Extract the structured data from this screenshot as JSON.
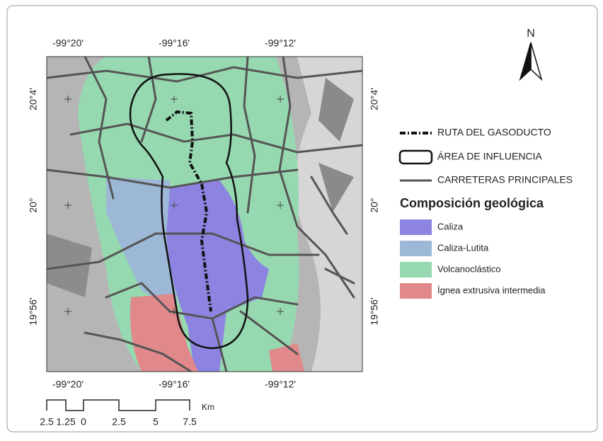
{
  "map": {
    "top_labels": [
      "-99°20'",
      "-99°16'",
      "-99°12'"
    ],
    "bottom_labels": [
      "-99°20'",
      "-99°16'",
      "-99°12'"
    ],
    "left_labels": [
      "20°4'",
      "20°",
      "19°56'"
    ],
    "right_labels": [
      "20°4'",
      "20°",
      "19°56'"
    ],
    "north": "N"
  },
  "legend": {
    "lines": [
      "RUTA DEL GASODUCTO",
      "ÁREA DE INFLUENCIA",
      "CARRETERAS PRINCIPALES"
    ],
    "title": "Composición geológica",
    "units": [
      {
        "label": "Caliza",
        "color": "#8c84e0"
      },
      {
        "label": "Caliza-Lutita",
        "color": "#9db8d6"
      },
      {
        "label": "Volcanoclástico",
        "color": "#96d9b0"
      },
      {
        "label": "Ígnea extrusiva intermedia",
        "color": "#e0888a"
      }
    ]
  },
  "scale_bar": {
    "unit": "Km",
    "labels": [
      "2.5",
      "1.25",
      "0",
      "2.5",
      "5",
      "7.5"
    ]
  }
}
